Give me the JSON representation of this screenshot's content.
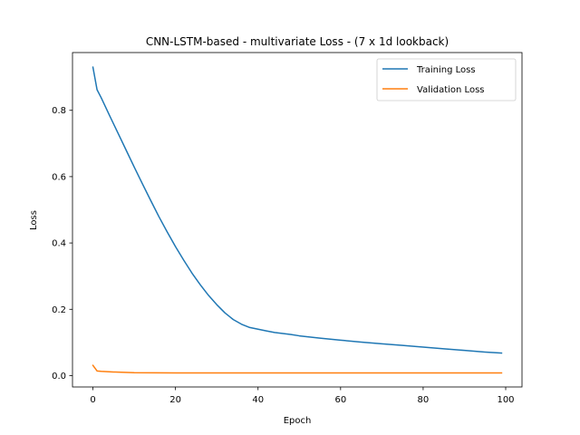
{
  "chart_data": {
    "type": "line",
    "title": "CNN-LSTM-based - multivariate Loss - (7 x 1d lookback)",
    "xlabel": "Epoch",
    "ylabel": "Loss",
    "xlim": [
      -4.95,
      103.95
    ],
    "ylim": [
      -0.0342,
      0.9741
    ],
    "xticks": [
      0,
      20,
      40,
      60,
      80,
      100
    ],
    "xtick_labels": [
      "0",
      "20",
      "40",
      "60",
      "80",
      "100"
    ],
    "yticks": [
      0.0,
      0.2,
      0.4,
      0.6,
      0.8
    ],
    "ytick_labels": [
      "0.0",
      "0.2",
      "0.4",
      "0.6",
      "0.8"
    ],
    "grid": false,
    "legend_position": "top-right",
    "series": [
      {
        "name": "Training Loss",
        "color": "#1f77b4",
        "x": [
          0,
          1,
          2,
          4,
          6,
          8,
          10,
          12,
          14,
          16,
          18,
          20,
          22,
          24,
          26,
          28,
          30,
          32,
          34,
          36,
          38,
          40,
          42,
          44,
          46,
          48,
          50,
          55,
          60,
          65,
          70,
          75,
          80,
          85,
          90,
          95,
          99
        ],
        "y": [
          0.93,
          0.862,
          0.838,
          0.785,
          0.733,
          0.681,
          0.629,
          0.578,
          0.528,
          0.479,
          0.433,
          0.389,
          0.348,
          0.309,
          0.274,
          0.242,
          0.214,
          0.189,
          0.169,
          0.155,
          0.145,
          0.14,
          0.135,
          0.13,
          0.127,
          0.124,
          0.12,
          0.113,
          0.107,
          0.101,
          0.096,
          0.091,
          0.086,
          0.081,
          0.076,
          0.071,
          0.068
        ]
      },
      {
        "name": "Validation Loss",
        "color": "#ff7f0e",
        "x": [
          0,
          1,
          2,
          5,
          10,
          20,
          40,
          60,
          80,
          99
        ],
        "y": [
          0.031,
          0.014,
          0.013,
          0.011,
          0.009,
          0.008,
          0.008,
          0.008,
          0.008,
          0.008
        ]
      }
    ]
  }
}
